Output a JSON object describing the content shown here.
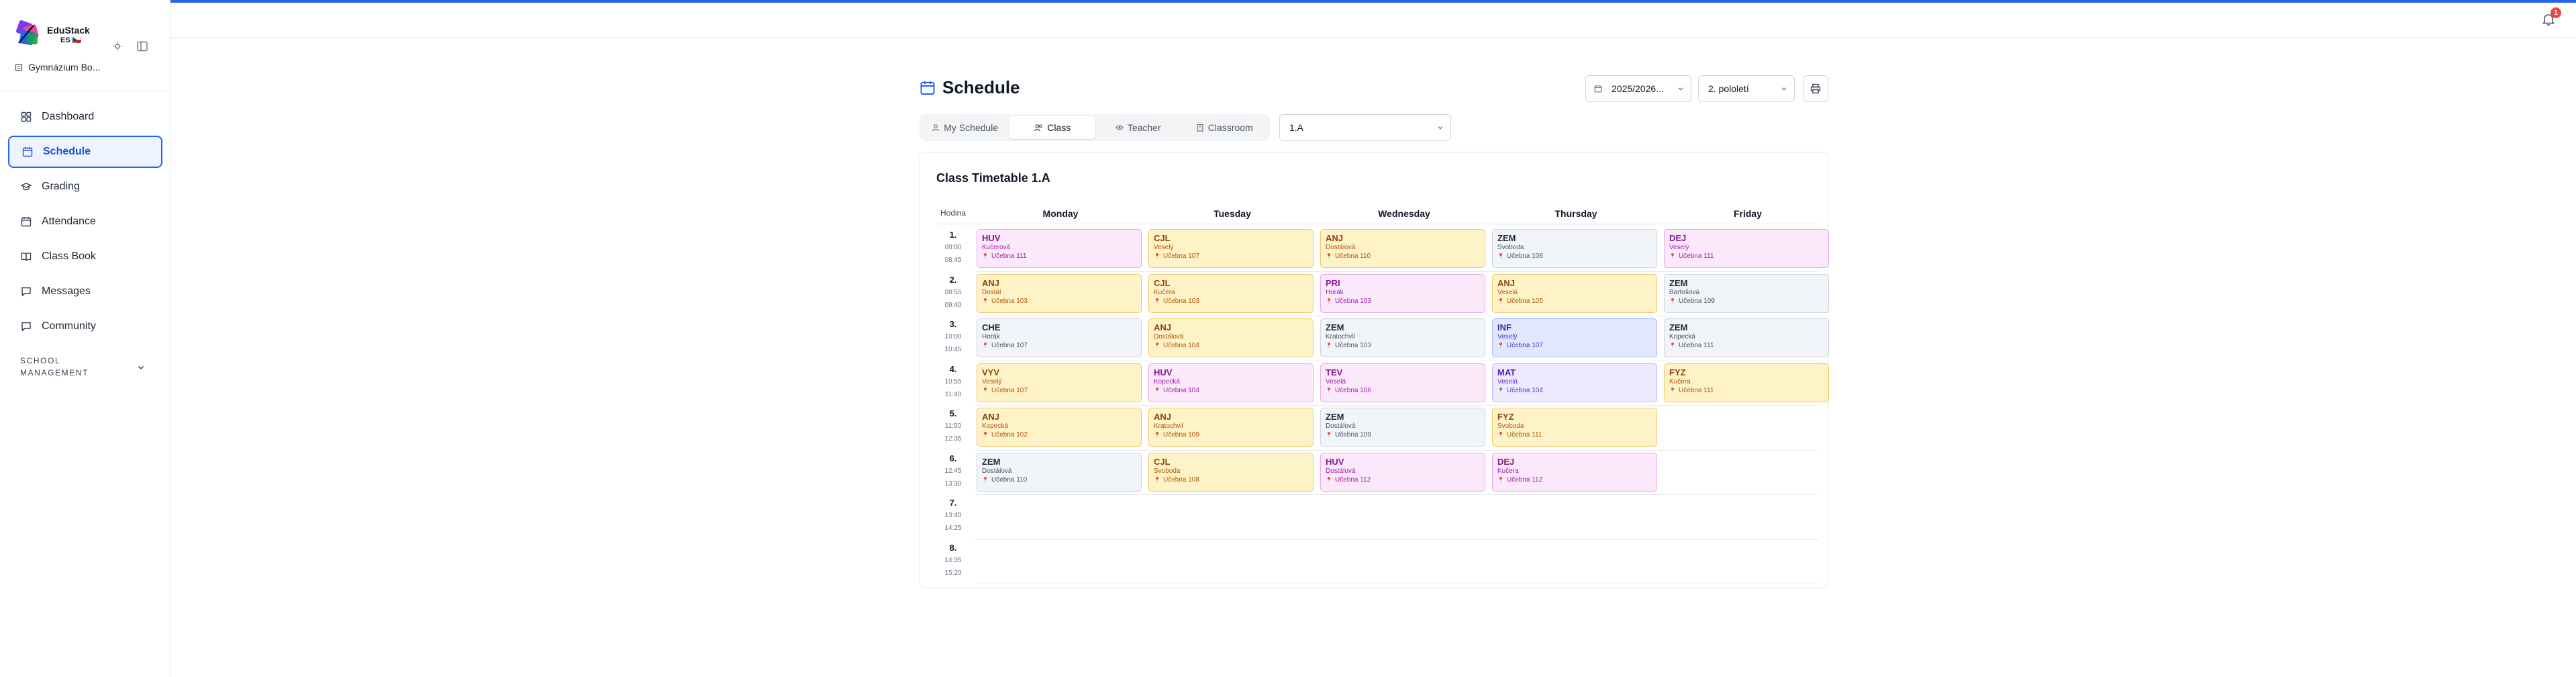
{
  "app": {
    "name": "EduStack",
    "sub": "ES 🇨🇿",
    "school": "Gymnázium Bo..."
  },
  "sidebar": {
    "items": [
      {
        "label": "Dashboard",
        "icon": "dashboard-icon"
      },
      {
        "label": "Schedule",
        "icon": "calendar-icon"
      },
      {
        "label": "Grading",
        "icon": "grading-icon"
      },
      {
        "label": "Attendance",
        "icon": "calendar-check-icon"
      },
      {
        "label": "Class Book",
        "icon": "book-icon"
      },
      {
        "label": "Messages",
        "icon": "message-icon"
      },
      {
        "label": "Community",
        "icon": "chat-icon"
      }
    ],
    "section_line1": "SCHOOL",
    "section_line2": "MANAGEMENT"
  },
  "notifications": {
    "count": "1"
  },
  "header": {
    "title": "Schedule",
    "year": "2025/2026...",
    "semester": "2. pololetí"
  },
  "tabs": [
    {
      "label": "My Schedule",
      "icon": "user-icon"
    },
    {
      "label": "Class",
      "icon": "users-icon"
    },
    {
      "label": "Teacher",
      "icon": "eye-icon"
    },
    {
      "label": "Classroom",
      "icon": "building-icon"
    }
  ],
  "class_select": {
    "value": "1.A"
  },
  "timetable": {
    "title": "Class Timetable 1.A",
    "hour_label": "Hodina",
    "days": [
      "Monday",
      "Tuesday",
      "Wednesday",
      "Thursday",
      "Friday"
    ],
    "periods": [
      {
        "num": "1.",
        "start": "08:00",
        "end": "08:45"
      },
      {
        "num": "2.",
        "start": "08:55",
        "end": "09:40"
      },
      {
        "num": "3.",
        "start": "10:00",
        "end": "10:45"
      },
      {
        "num": "4.",
        "start": "10:55",
        "end": "11:40"
      },
      {
        "num": "5.",
        "start": "11:50",
        "end": "12:35"
      },
      {
        "num": "6.",
        "start": "12:45",
        "end": "13:30"
      },
      {
        "num": "7.",
        "start": "13:40",
        "end": "14:25"
      },
      {
        "num": "8.",
        "start": "14:35",
        "end": "15:20"
      }
    ],
    "lessons": [
      [
        {
          "subject": "HUV",
          "teacher": "Kučerová",
          "room": "Učebna 111",
          "color": "pink"
        },
        {
          "subject": "CJL",
          "teacher": "Veselý",
          "room": "Učebna 107",
          "color": "amber"
        },
        {
          "subject": "ANJ",
          "teacher": "Dostálová",
          "room": "Učebna 110",
          "color": "amber"
        },
        {
          "subject": "ZEM",
          "teacher": "Svoboda",
          "room": "Učebna 106",
          "color": "gray"
        },
        {
          "subject": "DEJ",
          "teacher": "Veselý",
          "room": "Učebna 111",
          "color": "pink"
        }
      ],
      [
        {
          "subject": "ANJ",
          "teacher": "Dostál",
          "room": "Učebna 103",
          "color": "amber"
        },
        {
          "subject": "CJL",
          "teacher": "Kučera",
          "room": "Učebna 103",
          "color": "amber"
        },
        {
          "subject": "PRI",
          "teacher": "Horák",
          "room": "Učebna 103",
          "color": "pink"
        },
        {
          "subject": "ANJ",
          "teacher": "Veselá",
          "room": "Učebna 105",
          "color": "amber"
        },
        {
          "subject": "ZEM",
          "teacher": "Bartošová",
          "room": "Učebna 109",
          "color": "gray"
        }
      ],
      [
        {
          "subject": "CHE",
          "teacher": "Horák",
          "room": "Učebna 107",
          "color": "gray"
        },
        {
          "subject": "ANJ",
          "teacher": "Dostálová",
          "room": "Učebna 104",
          "color": "amber"
        },
        {
          "subject": "ZEM",
          "teacher": "Kratochvil",
          "room": "Učebna 103",
          "color": "gray"
        },
        {
          "subject": "INF",
          "teacher": "Veselý",
          "room": "Učebna 107",
          "color": "blue"
        },
        {
          "subject": "ZEM",
          "teacher": "Kopecká",
          "room": "Učebna 111",
          "color": "gray"
        }
      ],
      [
        {
          "subject": "VYV",
          "teacher": "Veselý",
          "room": "Učebna 107",
          "color": "amber"
        },
        {
          "subject": "HUV",
          "teacher": "Kopecká",
          "room": "Učebna 104",
          "color": "pink"
        },
        {
          "subject": "TEV",
          "teacher": "Veselá",
          "room": "Učebna 106",
          "color": "pink"
        },
        {
          "subject": "MAT",
          "teacher": "Veselá",
          "room": "Učebna 104",
          "color": "lav"
        },
        {
          "subject": "FYZ",
          "teacher": "Kučera",
          "room": "Učebna 111",
          "color": "amber"
        }
      ],
      [
        {
          "subject": "ANJ",
          "teacher": "Kopecká",
          "room": "Učebna 102",
          "color": "amber"
        },
        {
          "subject": "ANJ",
          "teacher": "Kratochvil",
          "room": "Učebna 109",
          "color": "amber"
        },
        {
          "subject": "ZEM",
          "teacher": "Dostálová",
          "room": "Učebna 109",
          "color": "gray"
        },
        {
          "subject": "FYZ",
          "teacher": "Svoboda",
          "room": "Učebna 111",
          "color": "amber"
        },
        null
      ],
      [
        {
          "subject": "ZEM",
          "teacher": "Dostálová",
          "room": "Učebna 110",
          "color": "gray"
        },
        {
          "subject": "CJL",
          "teacher": "Svoboda",
          "room": "Učebna 108",
          "color": "amber"
        },
        {
          "subject": "HUV",
          "teacher": "Dostálová",
          "room": "Učebna 112",
          "color": "pink"
        },
        {
          "subject": "DEJ",
          "teacher": "Kučera",
          "room": "Učebna 112",
          "color": "pink"
        },
        null
      ],
      [
        null,
        null,
        null,
        null,
        null
      ],
      [
        null,
        null,
        null,
        null,
        null
      ]
    ]
  },
  "colors": {
    "accent": "#2563eb",
    "active_bg": "#eef4ff",
    "badge": "#ef4444"
  }
}
